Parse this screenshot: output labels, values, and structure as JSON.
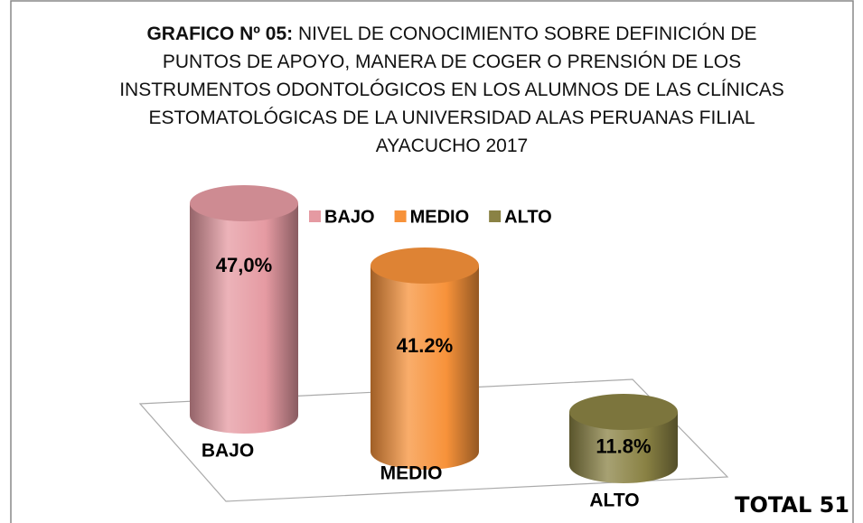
{
  "chart_data": {
    "type": "cylinder",
    "title_prefix": "GRAFICO Nº 05:",
    "title": "NIVEL DE CONOCIMIENTO SOBRE DEFINICIÓN DE PUNTOS DE APOYO, MANERA DE COGER O PRENSIÓN DE LOS INSTRUMENTOS ODONTOLÓGICOS EN LOS ALUMNOS DE LAS CLÍNICAS ESTOMATOLÓGICAS DE LA UNIVERSIDAD ALAS PERUANAS FILIAL AYACUCHO  2017",
    "categories": [
      "BAJO",
      "MEDIO",
      "ALTO"
    ],
    "values": [
      47.0,
      41.2,
      11.8
    ],
    "value_labels": [
      "47,0%",
      "41.2%",
      "11.8%"
    ],
    "colors": [
      "#e59aa2",
      "#f7923a",
      "#8a8244"
    ],
    "legend": "top",
    "annotation": "TOTAL 51"
  }
}
